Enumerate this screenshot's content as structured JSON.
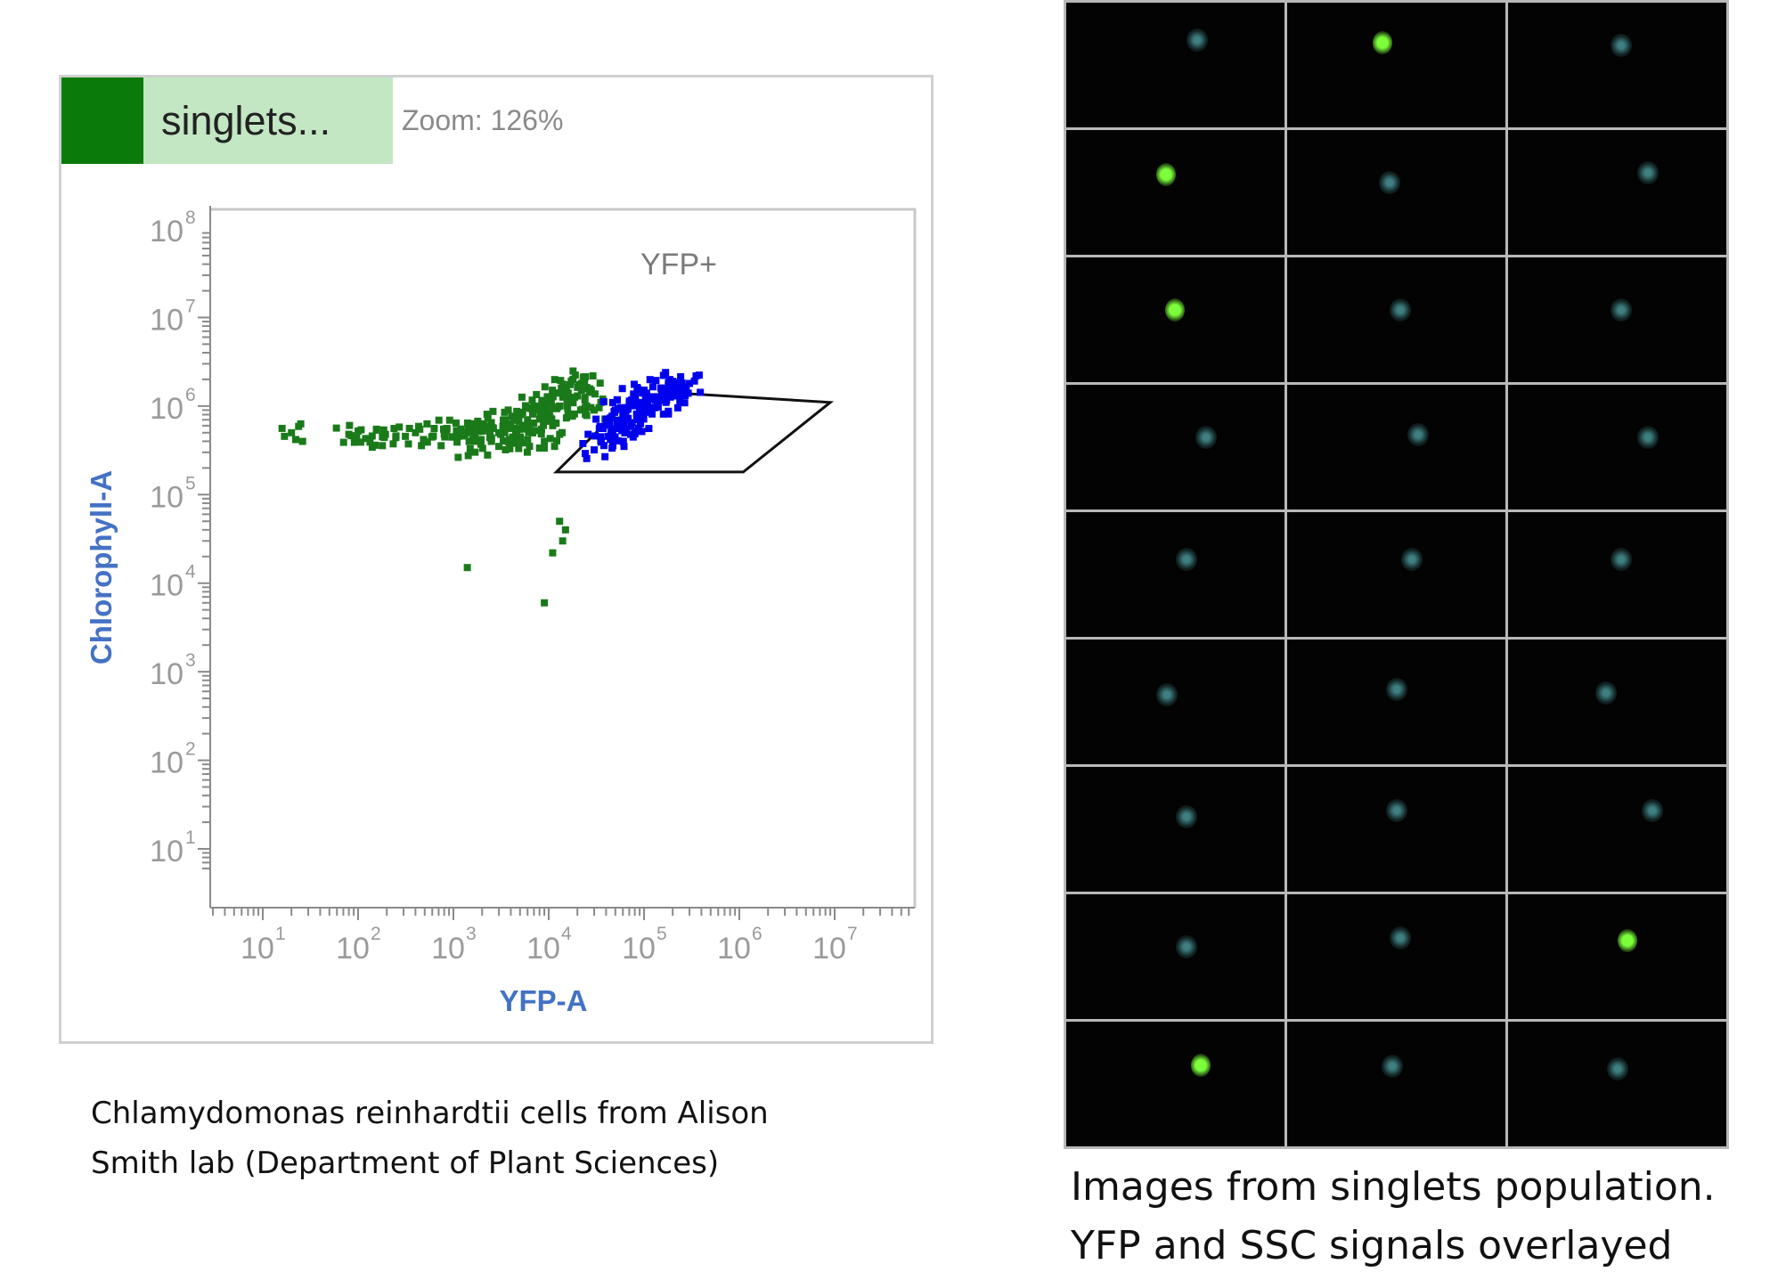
{
  "plot_panel": {
    "population_name": "singlets...",
    "zoom_text": "Zoom: 126%",
    "colors": {
      "population_swatch": "#0a7a0a",
      "population_tab": "#c3e6c3"
    }
  },
  "chart_data": {
    "type": "scatter",
    "xlabel": "YFP-A",
    "ylabel": "Chlorophyll-A",
    "x_scale": "log",
    "y_scale": "log",
    "xlim": [
      1,
      10000000
    ],
    "ylim": [
      1,
      100000000
    ],
    "x_tick_labels": [
      "10",
      "10",
      "10",
      "10",
      "10",
      "10",
      "10"
    ],
    "x_tick_exponents": [
      "1",
      "2",
      "3",
      "4",
      "5",
      "6",
      "7"
    ],
    "x_tick_values": [
      10,
      100,
      1000,
      10000,
      100000,
      1000000,
      10000000
    ],
    "y_tick_labels": [
      "10",
      "10",
      "10",
      "10",
      "10",
      "10",
      "10",
      "10"
    ],
    "y_tick_exponents": [
      "8",
      "7",
      "6",
      "5",
      "4",
      "3",
      "2",
      "1"
    ],
    "y_tick_values": [
      100000000,
      10000000,
      1000000,
      100000,
      10000,
      1000,
      100,
      10
    ],
    "axis_label_color": "#4472c4",
    "gate": {
      "name": "YFP+",
      "vertices": [
        [
          12000,
          180000
        ],
        [
          60000,
          1000000
        ],
        [
          230000,
          1400000
        ],
        [
          9000000,
          1100000
        ],
        [
          1100000,
          180000
        ]
      ]
    },
    "series": [
      {
        "color": "#1a7a1a",
        "points": [
          [
            400,
            500000
          ],
          [
            600,
            450000
          ],
          [
            800,
            550000
          ],
          [
            1000,
            450000
          ],
          [
            1200,
            550000
          ],
          [
            1500,
            500000
          ],
          [
            1800,
            600000
          ],
          [
            2000,
            520000
          ],
          [
            2500,
            650000
          ],
          [
            3000,
            500000
          ],
          [
            3500,
            700000
          ],
          [
            4000,
            600000
          ],
          [
            5000,
            800000
          ],
          [
            5500,
            550000
          ],
          [
            6000,
            700000
          ],
          [
            7000,
            1000000
          ],
          [
            8000,
            900000
          ],
          [
            9000,
            800000
          ],
          [
            10000,
            1200000
          ],
          [
            11000,
            600000
          ],
          [
            12000,
            1400000
          ],
          [
            13000,
            1000000
          ],
          [
            15000,
            1600000
          ],
          [
            16000,
            800000
          ],
          [
            18000,
            2000000
          ],
          [
            20000,
            1300000
          ],
          [
            22000,
            1800000
          ],
          [
            25000,
            1000000
          ],
          [
            28000,
            1500000
          ],
          [
            30000,
            900000
          ],
          [
            1500,
            330000
          ],
          [
            3000,
            350000
          ],
          [
            4500,
            380000
          ],
          [
            6000,
            420000
          ],
          [
            9000,
            400000
          ],
          [
            20,
            500000
          ],
          [
            80,
            480000
          ],
          [
            120,
            430000
          ],
          [
            180,
            450000
          ],
          [
            250,
            460000
          ],
          [
            13000,
            50000
          ],
          [
            15000,
            40000
          ],
          [
            14000,
            30000
          ],
          [
            11000,
            22000
          ],
          [
            1400,
            15000
          ],
          [
            9000,
            6000
          ]
        ]
      },
      {
        "color": "#0000ee",
        "points": [
          [
            40000,
            700000
          ],
          [
            50000,
            900000
          ],
          [
            60000,
            800000
          ],
          [
            70000,
            1100000
          ],
          [
            80000,
            1300000
          ],
          [
            90000,
            1000000
          ],
          [
            100000,
            1400000
          ],
          [
            120000,
            1200000
          ],
          [
            150000,
            1600000
          ],
          [
            180000,
            1500000
          ],
          [
            200000,
            1900000
          ],
          [
            250000,
            1700000
          ],
          [
            300000,
            1800000
          ],
          [
            45000,
            500000
          ],
          [
            55000,
            600000
          ],
          [
            65000,
            550000
          ],
          [
            75000,
            650000
          ],
          [
            35000,
            450000
          ],
          [
            30000,
            320000
          ],
          [
            60000,
            400000
          ],
          [
            85000,
            700000
          ],
          [
            110000,
            900000
          ],
          [
            140000,
            1000000
          ],
          [
            170000,
            1100000
          ],
          [
            220000,
            1300000
          ]
        ]
      }
    ]
  },
  "left_caption": {
    "line1": "Chlamydomonas reinhardtii cells from Alison",
    "line2": "Smith lab (Department of Plant Sciences)"
  },
  "right_caption": {
    "line1": "Images from singlets population.",
    "line2": "YFP and SSC signals overlayed"
  },
  "image_grid": {
    "colors": {
      "yfp_bright": "#7cff3a",
      "ssc_dim": "#3f7f82"
    },
    "tiles": [
      "dim",
      "bright",
      "dim",
      "bright",
      "dim",
      "dim",
      "bright",
      "dim",
      "dim",
      "dim",
      "dim",
      "dim",
      "dim",
      "dim",
      "dim",
      "dim",
      "dim",
      "dim",
      "dim",
      "dim",
      "dim",
      "dim",
      "dim",
      "bright",
      "bright",
      "dim",
      "dim"
    ]
  }
}
